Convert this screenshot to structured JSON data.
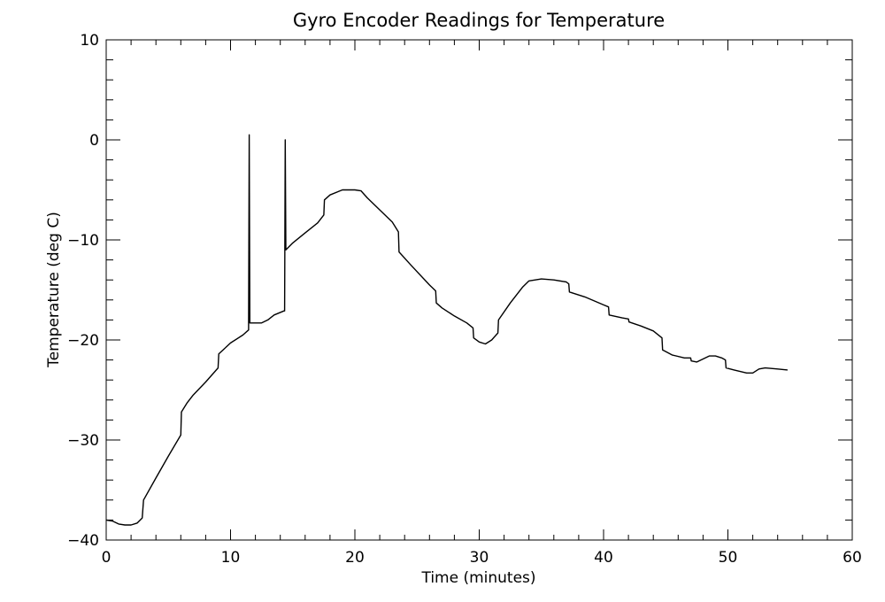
{
  "chart_data": {
    "type": "line",
    "title": "Gyro Encoder Readings for Temperature",
    "xlabel": "Time (minutes)",
    "ylabel": "Temperature (deg C)",
    "xlim": [
      0,
      60
    ],
    "ylim": [
      -40,
      10
    ],
    "xticks": [
      0,
      10,
      20,
      30,
      40,
      50,
      60
    ],
    "yticks": [
      -40,
      -30,
      -20,
      -10,
      0,
      10
    ],
    "grid": false,
    "series": [
      {
        "color": "#000000",
        "points": [
          [
            0.0,
            -38.0
          ],
          [
            0.5,
            -38.1
          ],
          [
            1.0,
            -38.4
          ],
          [
            1.5,
            -38.5
          ],
          [
            2.0,
            -38.5
          ],
          [
            2.5,
            -38.3
          ],
          [
            2.9,
            -37.8
          ],
          [
            3.0,
            -36.0
          ],
          [
            4.0,
            -33.8
          ],
          [
            5.0,
            -31.6
          ],
          [
            6.0,
            -29.5
          ],
          [
            6.05,
            -27.2
          ],
          [
            6.5,
            -26.3
          ],
          [
            7.0,
            -25.5
          ],
          [
            8.0,
            -24.2
          ],
          [
            9.0,
            -22.8
          ],
          [
            9.05,
            -21.4
          ],
          [
            10.0,
            -20.3
          ],
          [
            11.0,
            -19.5
          ],
          [
            11.45,
            -19.0
          ],
          [
            11.5,
            0.5
          ],
          [
            11.55,
            -18.3
          ],
          [
            12.0,
            -18.3
          ],
          [
            12.5,
            -18.3
          ],
          [
            13.0,
            -18.0
          ],
          [
            13.5,
            -17.5
          ],
          [
            14.3,
            -17.1
          ],
          [
            14.35,
            -17.1
          ],
          [
            14.4,
            0.0
          ],
          [
            14.45,
            -11.0
          ],
          [
            15.0,
            -10.3
          ],
          [
            16.0,
            -9.3
          ],
          [
            17.0,
            -8.3
          ],
          [
            17.5,
            -7.5
          ],
          [
            17.55,
            -6.0
          ],
          [
            18.0,
            -5.5
          ],
          [
            19.0,
            -5.0
          ],
          [
            20.0,
            -5.0
          ],
          [
            20.5,
            -5.1
          ],
          [
            21.0,
            -5.8
          ],
          [
            22.0,
            -7.0
          ],
          [
            23.0,
            -8.2
          ],
          [
            23.5,
            -9.2
          ],
          [
            23.55,
            -11.2
          ],
          [
            24.5,
            -12.5
          ],
          [
            26.0,
            -14.5
          ],
          [
            26.5,
            -15.1
          ],
          [
            26.55,
            -16.3
          ],
          [
            27.0,
            -16.8
          ],
          [
            28.0,
            -17.6
          ],
          [
            29.0,
            -18.3
          ],
          [
            29.5,
            -18.8
          ],
          [
            29.55,
            -19.8
          ],
          [
            30.0,
            -20.2
          ],
          [
            30.5,
            -20.4
          ],
          [
            31.0,
            -20.0
          ],
          [
            31.5,
            -19.3
          ],
          [
            31.55,
            -18.0
          ],
          [
            32.5,
            -16.3
          ],
          [
            33.5,
            -14.7
          ],
          [
            34.0,
            -14.1
          ],
          [
            35.0,
            -13.9
          ],
          [
            36.0,
            -14.0
          ],
          [
            37.0,
            -14.2
          ],
          [
            37.2,
            -14.4
          ],
          [
            37.25,
            -15.2
          ],
          [
            38.5,
            -15.7
          ],
          [
            40.0,
            -16.5
          ],
          [
            40.4,
            -16.7
          ],
          [
            40.45,
            -17.5
          ],
          [
            41.5,
            -17.8
          ],
          [
            42.0,
            -17.9
          ],
          [
            42.05,
            -18.2
          ],
          [
            43.0,
            -18.6
          ],
          [
            44.0,
            -19.1
          ],
          [
            44.7,
            -19.8
          ],
          [
            44.75,
            -21.0
          ],
          [
            45.5,
            -21.5
          ],
          [
            46.5,
            -21.8
          ],
          [
            47.0,
            -21.8
          ],
          [
            47.05,
            -22.1
          ],
          [
            47.5,
            -22.2
          ],
          [
            48.0,
            -21.9
          ],
          [
            48.5,
            -21.6
          ],
          [
            49.0,
            -21.6
          ],
          [
            49.5,
            -21.8
          ],
          [
            49.8,
            -22.0
          ],
          [
            49.85,
            -22.8
          ],
          [
            50.5,
            -23.0
          ],
          [
            51.5,
            -23.3
          ],
          [
            52.0,
            -23.3
          ],
          [
            52.5,
            -22.9
          ],
          [
            53.0,
            -22.8
          ],
          [
            54.0,
            -22.9
          ],
          [
            54.8,
            -23.0
          ]
        ]
      }
    ]
  }
}
